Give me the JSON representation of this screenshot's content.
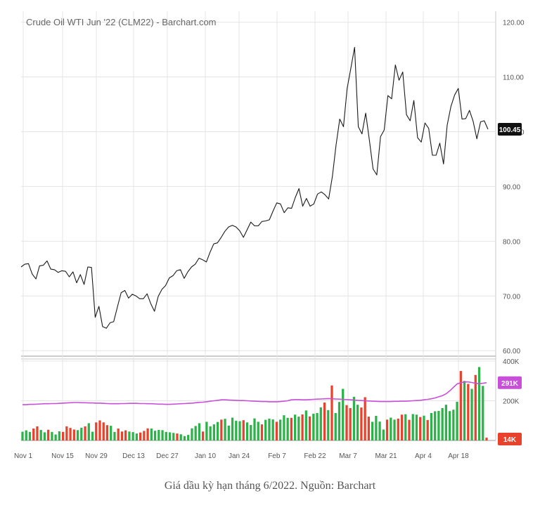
{
  "caption": "Giá dầu kỳ hạn tháng 6/2022. Nguồn: Barchart",
  "colors": {
    "price_line": "#1a1a1a",
    "volume_up": "#2db24a",
    "volume_down": "#e8412c",
    "volume_ma": "#c84fd8",
    "last_price_badge": "#111111",
    "avg_volume_badge": "#c84fd8",
    "last_volume_badge": "#e8412c",
    "grid": "#e4e4e4",
    "axis_text": "#555555",
    "title_text": "#666666"
  },
  "chart_data": [
    {
      "type": "line",
      "title": "Crude Oil WTI Jun '22 (CLM22) - Barchart.com",
      "y_tick_labels": [
        "120.00",
        "110.00",
        "100.00",
        "90.00",
        "80.00",
        "70.00",
        "60.00"
      ],
      "ylim": [
        59,
        122
      ],
      "grid": true,
      "last_price_label": "100.45",
      "x_tick_labels": [
        "Nov 1",
        "Nov 15",
        "Nov 29",
        "Dec 13",
        "Dec 27",
        "Jan 10",
        "Jan 24",
        "Feb 7",
        "Feb 22",
        "Mar 7",
        "Mar 21",
        "Apr 4",
        "Apr 18"
      ],
      "series": [
        {
          "values": [
            75.3,
            75.8,
            75.9,
            74.0,
            73.1,
            75.5,
            75.6,
            76.4,
            74.9,
            74.8,
            74.3,
            74.6,
            74.5,
            73.5,
            74.4,
            72.4,
            73.9,
            72.1,
            75.3,
            75.2,
            66.1,
            68.1,
            64.4,
            64.1,
            65.1,
            65.3,
            68.0,
            70.6,
            71.0,
            69.6,
            70.3,
            70.0,
            69.5,
            69.5,
            70.4,
            68.6,
            67.2,
            69.9,
            71.2,
            71.9,
            73.3,
            73.7,
            74.6,
            74.8,
            73.2,
            74.4,
            75.3,
            75.8,
            76.9,
            76.6,
            76.2,
            78.0,
            79.5,
            79.7,
            80.7,
            81.8,
            82.6,
            82.9,
            82.6,
            81.9,
            80.7,
            82.1,
            83.5,
            82.8,
            82.8,
            83.6,
            83.7,
            83.9,
            85.5,
            87.0,
            86.8,
            85.2,
            86.1,
            86.0,
            88.0,
            89.6,
            86.4,
            87.8,
            86.4,
            86.8,
            88.6,
            89.0,
            88.5,
            87.7,
            91.8,
            97.5,
            102.3,
            100.9,
            107.9,
            111.6,
            115.4,
            100.9,
            99.6,
            103.4,
            98.4,
            93.2,
            92.1,
            99.1,
            100.3,
            106.6,
            106.0,
            112.2,
            109.4,
            110.9,
            103.1,
            102.0,
            105.7,
            98.9,
            98.1,
            101.6,
            100.6,
            95.7,
            95.7,
            97.9,
            94.1,
            101.2,
            104.6,
            106.7,
            107.9,
            102.3,
            102.4,
            103.9,
            101.9,
            98.7,
            101.8,
            102.0,
            100.45
          ]
        }
      ]
    },
    {
      "type": "bar",
      "y_tick_labels": [
        "400K",
        "200K"
      ],
      "ylim": [
        0,
        400
      ],
      "value_unit": "K",
      "avg_volume_label": "291K",
      "last_volume_label": "14K",
      "series": [
        {
          "name": "volume",
          "values": [
            44,
            51,
            43,
            60,
            71,
            53,
            41,
            54,
            43,
            30,
            46,
            43,
            71,
            63,
            55,
            52,
            64,
            71,
            87,
            44,
            91,
            101,
            91,
            77,
            74,
            43,
            60,
            45,
            51,
            45,
            42,
            35,
            40,
            48,
            61,
            60,
            49,
            53,
            52,
            43,
            41,
            38,
            35,
            31,
            22,
            28,
            61,
            73,
            87,
            45,
            94,
            71,
            81,
            93,
            105,
            109,
            75,
            115,
            99,
            97,
            102,
            91,
            78,
            111,
            94,
            81,
            104,
            110,
            106,
            94,
            105,
            127,
            114,
            114,
            130,
            120,
            131,
            151,
            121,
            135,
            138,
            167,
            191,
            153,
            277,
            138,
            194,
            260,
            178,
            163,
            220,
            180,
            166,
            218,
            120,
            94,
            124,
            95,
            55,
            105,
            115,
            105,
            110,
            130,
            132,
            104,
            133,
            130,
            118,
            125,
            103,
            138,
            147,
            149,
            163,
            180,
            148,
            155,
            195,
            350,
            300,
            285,
            260,
            330,
            370,
            275,
            14
          ],
          "down": [
            false,
            false,
            false,
            true,
            true,
            false,
            false,
            true,
            false,
            false,
            false,
            true,
            true,
            true,
            true,
            false,
            false,
            true,
            false,
            false,
            true,
            true,
            true,
            true,
            false,
            false,
            true,
            true,
            true,
            false,
            false,
            false,
            true,
            true,
            true,
            false,
            false,
            false,
            false,
            false,
            false,
            false,
            true,
            false,
            false,
            false,
            false,
            false,
            false,
            true,
            false,
            false,
            false,
            false,
            true,
            false,
            false,
            false,
            false,
            false,
            true,
            false,
            false,
            false,
            false,
            true,
            false,
            false,
            false,
            true,
            false,
            false,
            false,
            true,
            false,
            false,
            true,
            false,
            true,
            false,
            false,
            false,
            true,
            false,
            true,
            false,
            false,
            false,
            true,
            true,
            false,
            false,
            true,
            true,
            true,
            false,
            false,
            false,
            false,
            true,
            false,
            false,
            true,
            true,
            false,
            true,
            false,
            false,
            true,
            false,
            true,
            false,
            false,
            false,
            false,
            false,
            false,
            false,
            false,
            true,
            false,
            true,
            false,
            true,
            false,
            false,
            true
          ],
          "ma": [
            180,
            180,
            182,
            182,
            183,
            184,
            185,
            185,
            186,
            186,
            187,
            188,
            189,
            190,
            191,
            191,
            190,
            190,
            189,
            189,
            188,
            188,
            187,
            186,
            185,
            185,
            185,
            186,
            186,
            187,
            187,
            187,
            186,
            186,
            185,
            185,
            184,
            183,
            183,
            182,
            182,
            183,
            184,
            185,
            186,
            187,
            188,
            190,
            192,
            193,
            195,
            198,
            200,
            202,
            205,
            205,
            204,
            203,
            202,
            201,
            201,
            200,
            199,
            198,
            197,
            196,
            196,
            195,
            195,
            195,
            196,
            198,
            200,
            205,
            206,
            206,
            205,
            205,
            206,
            207,
            208,
            209,
            210,
            211,
            210,
            209,
            208,
            207,
            206,
            205,
            204,
            202,
            201,
            200,
            199,
            198,
            197,
            196,
            196,
            196,
            196,
            197,
            197,
            198,
            198,
            199,
            200,
            201,
            202,
            205,
            207,
            210,
            214,
            220,
            226,
            235,
            250,
            268,
            285,
            291,
            295,
            295,
            292,
            288,
            286,
            288,
            291
          ]
        }
      ]
    }
  ]
}
